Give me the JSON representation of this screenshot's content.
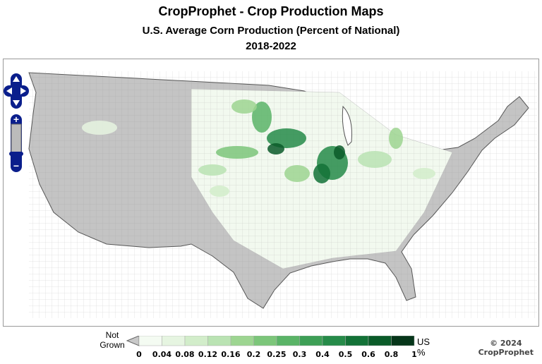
{
  "title": "CropProphet - Crop Production Maps",
  "subtitle": "U.S. Average Corn Production (Percent of National)",
  "years": "2018-2022",
  "legend": {
    "not_grown": "Not Grown",
    "unit": "US %",
    "ticks": [
      "0",
      "0.04",
      "0.08",
      "0.12",
      "0.16",
      "0.2",
      "0.25",
      "0.3",
      "0.4",
      "0.5",
      "0.6",
      "0.8",
      "1"
    ],
    "colors": [
      "#f4fbf2",
      "#e6f5e1",
      "#d2edca",
      "#bae3b3",
      "#9dd591",
      "#7cc67a",
      "#5ab467",
      "#3d9f56",
      "#268b49",
      "#137237",
      "#0a5b29",
      "#06361a"
    ],
    "not_grown_color": "#c8c8c8"
  },
  "copyright": {
    "line1": "© 2024",
    "line2": "CropProphet"
  },
  "nav": {
    "pan": "pan-control",
    "zoom_in": "+",
    "zoom_out": "−"
  }
}
